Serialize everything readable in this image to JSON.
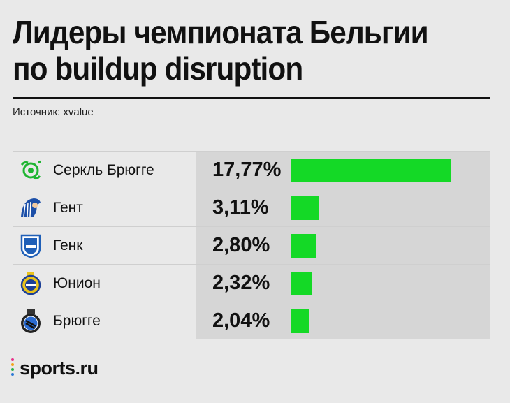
{
  "title": "Лидеры чемпионата Бельгии по buildup disruption",
  "source": "Источник: xvalue",
  "brand": "sports.ru",
  "colors": {
    "bar": "#14d926",
    "background": "#e9e9e9",
    "value_cell": "#d6d6d6"
  },
  "chart_data": {
    "type": "bar",
    "orientation": "horizontal",
    "title": "Лидеры чемпионата Бельгии по buildup disruption",
    "categories": [
      "Серкль Брюгге",
      "Гент",
      "Генк",
      "Юнион",
      "Брюгге"
    ],
    "values": [
      17.77,
      3.11,
      2.8,
      2.32,
      2.04
    ],
    "value_labels": [
      "17,77%",
      "3,11%",
      "2,80%",
      "2,32%",
      "2,04%"
    ],
    "unit": "%",
    "xlim": [
      0,
      17.77
    ],
    "grid": false,
    "legend": "none"
  },
  "rows": [
    {
      "team": "Серкль Брюгге",
      "value": "17,77%",
      "logo": "cercle-brugge-logo"
    },
    {
      "team": "Гент",
      "value": "3,11%",
      "logo": "gent-logo"
    },
    {
      "team": "Генк",
      "value": "2,80%",
      "logo": "genk-logo"
    },
    {
      "team": "Юнион",
      "value": "2,32%",
      "logo": "union-logo"
    },
    {
      "team": "Брюгге",
      "value": "2,04%",
      "logo": "club-brugge-logo"
    }
  ]
}
